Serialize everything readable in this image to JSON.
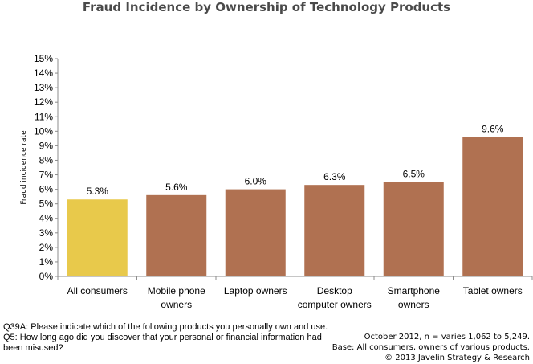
{
  "chart_data": {
    "type": "bar",
    "title": "Fraud Incidence by Ownership of Technology Products",
    "xlabel": "",
    "ylabel": "Fraud incidence rate",
    "ylim": [
      0,
      15
    ],
    "ytick_step": 1,
    "y_unit": "%",
    "grid": false,
    "legend": "none",
    "categories": [
      "All consumers",
      "Mobile phone owners",
      "Laptop owners",
      "Desktop computer owners",
      "Smartphone owners",
      "Tablet owners"
    ],
    "category_lines": [
      [
        "All consumers"
      ],
      [
        "Mobile phone",
        "owners"
      ],
      [
        "Laptop owners"
      ],
      [
        "Desktop",
        "computer owners"
      ],
      [
        "Smartphone",
        "owners"
      ],
      [
        "Tablet owners"
      ]
    ],
    "values": [
      5.3,
      5.6,
      6.0,
      6.3,
      6.5,
      9.6
    ],
    "value_labels": [
      "5.3%",
      "5.6%",
      "6.0%",
      "6.3%",
      "6.5%",
      "9.6%"
    ],
    "colors": [
      "#e8c94b",
      "#b07151",
      "#b07151",
      "#b07151",
      "#b07151",
      "#b07151"
    ]
  },
  "footnote_left": "Q39A: Please indicate which of the following products you personally own and use. Q5: How long ago did you discover that your personal or financial information had  been misused?",
  "footnote_right": {
    "line1": "October 2012, n = varies 1,062 to 5,249.",
    "line2": "Base: All consumers, owners of various products.",
    "line3": "© 2013 Javelin Strategy & Research"
  }
}
